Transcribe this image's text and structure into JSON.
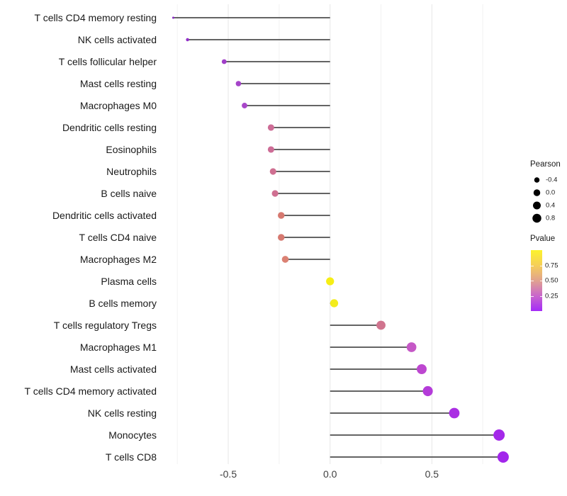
{
  "chart_data": {
    "type": "lollipop",
    "title": "",
    "xlabel": "",
    "ylabel": "",
    "xlim": [
      -0.81,
      0.93
    ],
    "grid": "vertical-only",
    "x_ticks": [
      {
        "v": -0.5,
        "label": "-0.5"
      },
      {
        "v": 0.0,
        "label": "0.0"
      },
      {
        "v": 0.5,
        "label": "0.5"
      }
    ],
    "x_minor_gridlines": [
      -0.75,
      -0.25,
      0.25,
      0.75
    ],
    "baseline": 0.0,
    "points": [
      {
        "label": "T cells CD4 memory resting",
        "pearson": -0.77,
        "color": "#8B2BC4"
      },
      {
        "label": "NK cells activated",
        "pearson": -0.7,
        "color": "#9330CA"
      },
      {
        "label": "T cells follicular helper",
        "pearson": -0.52,
        "color": "#A03EC8"
      },
      {
        "label": "Mast cells resting",
        "pearson": -0.45,
        "color": "#A544C9"
      },
      {
        "label": "Macrophages M0",
        "pearson": -0.42,
        "color": "#A847C9"
      },
      {
        "label": "Dendritic cells resting",
        "pearson": -0.29,
        "color": "#CD6C96"
      },
      {
        "label": "Eosinophils",
        "pearson": -0.29,
        "color": "#CD6C96"
      },
      {
        "label": "Neutrophils",
        "pearson": -0.28,
        "color": "#CF6F91"
      },
      {
        "label": "B cells naive",
        "pearson": -0.27,
        "color": "#CF6F91"
      },
      {
        "label": "Dendritic cells activated",
        "pearson": -0.24,
        "color": "#D67970"
      },
      {
        "label": "T cells CD4 naive",
        "pearson": -0.24,
        "color": "#D67970"
      },
      {
        "label": "Macrophages M2",
        "pearson": -0.22,
        "color": "#DB8173"
      },
      {
        "label": "Plasma cells",
        "pearson": 0.0,
        "color": "#F6EE15"
      },
      {
        "label": "B cells memory",
        "pearson": 0.02,
        "color": "#F3EC1C"
      },
      {
        "label": "T cells regulatory  Tregs",
        "pearson": 0.25,
        "color": "#D0748E"
      },
      {
        "label": "Macrophages M1",
        "pearson": 0.4,
        "color": "#C558C6"
      },
      {
        "label": "Mast cells activated",
        "pearson": 0.45,
        "color": "#BD47D0"
      },
      {
        "label": "T cells CD4 memory activated",
        "pearson": 0.48,
        "color": "#B43BD9"
      },
      {
        "label": "NK cells resting",
        "pearson": 0.61,
        "color": "#AA2EE3"
      },
      {
        "label": "Monocytes",
        "pearson": 0.83,
        "color": "#A428E9"
      },
      {
        "label": "T cells CD8",
        "pearson": 0.85,
        "color": "#A226EB"
      }
    ],
    "legends": {
      "size": {
        "title": "Pearson",
        "entries": [
          {
            "label": "-0.4"
          },
          {
            "label": "0.0"
          },
          {
            "label": "0.4"
          },
          {
            "label": "0.8"
          }
        ],
        "dot_color": "#000000"
      },
      "color": {
        "title": "Pvalue",
        "ticks": [
          {
            "v": 0.75,
            "label": "0.75"
          },
          {
            "v": 0.5,
            "label": "0.50"
          },
          {
            "v": 0.25,
            "label": "0.25"
          }
        ],
        "range": [
          0,
          1
        ],
        "gradient_top_to_bottom": [
          "#FCF32B",
          "#F5CE59",
          "#E1A28F",
          "#C966CC",
          "#A42BF8"
        ]
      }
    },
    "style_colors": {
      "stem": "#4E4E4E",
      "grid_major": "#E6E6E6",
      "grid_minor": "#F2F2F2",
      "axis_text": "#404040",
      "category_text": "#1A1A1A"
    }
  }
}
